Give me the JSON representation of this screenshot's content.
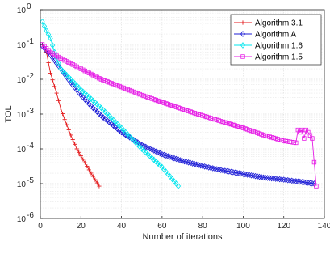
{
  "chart_data": {
    "type": "line",
    "title": "",
    "xlabel": "Number of iterations",
    "ylabel": "TOL",
    "xlim": [
      0,
      140
    ],
    "ylim": [
      1e-06,
      1
    ],
    "yscale": "log",
    "grid": true,
    "legend_position": "top-right",
    "x_ticks": [
      0,
      20,
      40,
      60,
      80,
      100,
      120,
      140
    ],
    "x_tick_labels": [
      "0",
      "20",
      "40",
      "60",
      "80",
      "100",
      "120",
      "140"
    ],
    "y_ticks": [
      1e-06,
      1e-05,
      0.0001,
      0.001,
      0.01,
      0.1,
      1
    ],
    "y_tick_labels": [
      {
        "base": "10",
        "exp": "-6"
      },
      {
        "base": "10",
        "exp": "-5"
      },
      {
        "base": "10",
        "exp": "-4"
      },
      {
        "base": "10",
        "exp": "-3"
      },
      {
        "base": "10",
        "exp": "-2"
      },
      {
        "base": "10",
        "exp": "-1"
      },
      {
        "base": "10",
        "exp": "0"
      }
    ],
    "series": [
      {
        "name": "Algorithm  3.1",
        "color": "#e41a1c",
        "marker": "plus",
        "x": [
          1,
          3,
          5,
          8,
          10,
          12,
          15,
          18,
          21,
          24,
          27,
          29
        ],
        "y": [
          0.1,
          0.06,
          0.015,
          0.004,
          0.0015,
          0.0007,
          0.00025,
          0.0001,
          5e-05,
          2.5e-05,
          1.3e-05,
          8.5e-06
        ]
      },
      {
        "name": "Algorithm A",
        "color": "#1c1cd6",
        "marker": "diamond",
        "x": [
          1,
          5,
          10,
          15,
          20,
          25,
          30,
          40,
          50,
          60,
          70,
          80,
          90,
          100,
          110,
          120,
          130,
          135
        ],
        "y": [
          0.09,
          0.05,
          0.02,
          0.008,
          0.0035,
          0.0017,
          0.0009,
          0.0003,
          0.00013,
          7e-05,
          4.5e-05,
          3.2e-05,
          2.4e-05,
          1.9e-05,
          1.5e-05,
          1.3e-05,
          1.1e-05,
          1e-05
        ]
      },
      {
        "name": "Algorithm 1.6",
        "color": "#00e5ee",
        "marker": "diamond",
        "x": [
          1,
          3,
          5,
          7,
          10,
          15,
          20,
          30,
          40,
          50,
          60,
          68
        ],
        "y": [
          0.45,
          0.25,
          0.15,
          0.06,
          0.02,
          0.01,
          0.005,
          0.0015,
          0.0004,
          0.0001,
          3e-05,
          8.5e-06
        ]
      },
      {
        "name": "Algorithm 1.5",
        "color": "#e61ee6",
        "marker": "square",
        "x": [
          1,
          5,
          10,
          20,
          30,
          40,
          50,
          60,
          70,
          80,
          90,
          100,
          110,
          120,
          126,
          127,
          128,
          129,
          130,
          131,
          132,
          134,
          136
        ],
        "y": [
          0.1,
          0.06,
          0.04,
          0.02,
          0.01,
          0.006,
          0.0035,
          0.0022,
          0.0014,
          0.0009,
          0.0006,
          0.0004,
          0.00025,
          0.00017,
          0.00015,
          0.00035,
          0.0003,
          0.00035,
          0.0002,
          0.00035,
          0.0003,
          0.0002,
          8.5e-06
        ]
      }
    ]
  }
}
